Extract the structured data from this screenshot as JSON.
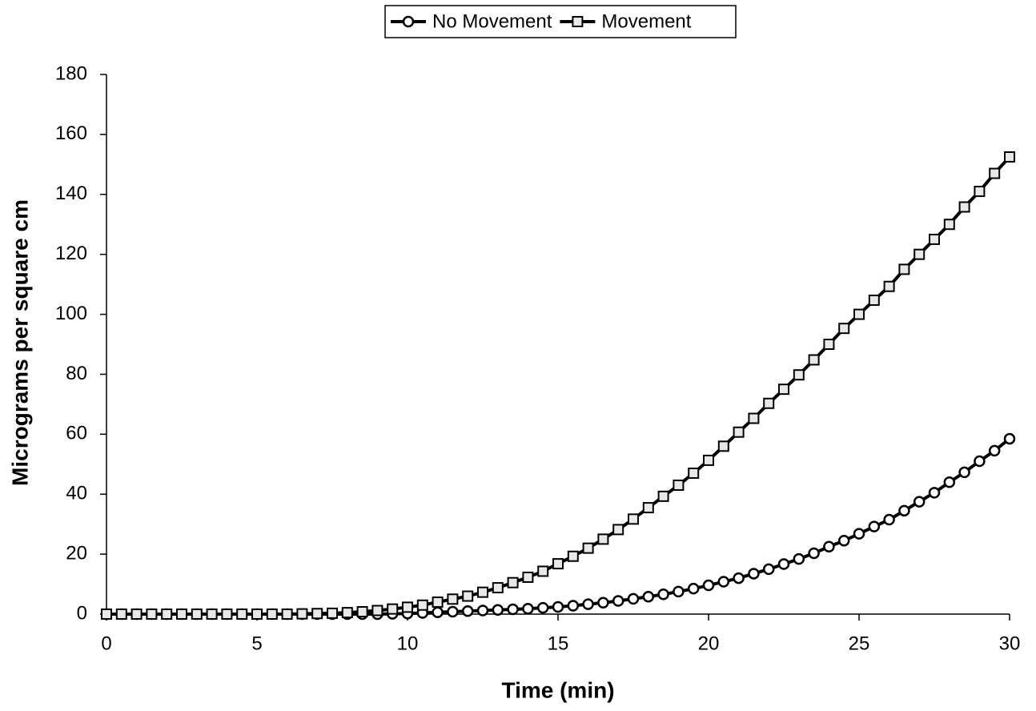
{
  "chart_data": {
    "type": "line",
    "x_label": "Time (min)",
    "y_label": "Micrograms per square cm",
    "x": [
      0,
      0.5,
      1,
      1.5,
      2,
      2.5,
      3,
      3.5,
      4,
      4.5,
      5,
      5.5,
      6,
      6.5,
      7,
      7.5,
      8,
      8.5,
      9,
      9.5,
      10,
      10.5,
      11,
      11.5,
      12,
      12.5,
      13,
      13.5,
      14,
      14.5,
      15,
      15.5,
      16,
      16.5,
      17,
      17.5,
      18,
      18.5,
      19,
      19.5,
      20,
      20.5,
      21,
      21.5,
      22,
      22.5,
      23,
      23.5,
      24,
      24.5,
      25,
      25.5,
      26,
      26.5,
      27,
      27.5,
      28,
      28.5,
      29,
      29.5,
      30
    ],
    "series": [
      {
        "name": "No Movement",
        "color": "#000000",
        "marker": "circle",
        "values": [
          0,
          0,
          0,
          0,
          0,
          0,
          0,
          0,
          0,
          0,
          0,
          0,
          0,
          0,
          0,
          0,
          0,
          0,
          0,
          0.1,
          0.2,
          0.4,
          0.6,
          0.8,
          1,
          1.2,
          1.4,
          1.6,
          1.8,
          2.1,
          2.4,
          2.8,
          3.3,
          3.8,
          4.4,
          5.1,
          5.8,
          6.6,
          7.5,
          8.5,
          9.6,
          10.8,
          12,
          13.5,
          15,
          16.7,
          18.4,
          20.3,
          22.5,
          24.5,
          26.8,
          29.2,
          31.5,
          34.5,
          37.5,
          40.5,
          44,
          47.3,
          51,
          54.5,
          58.5
        ]
      },
      {
        "name": "Movement",
        "color": "#000000",
        "marker": "square",
        "values": [
          0,
          0,
          0,
          0,
          0,
          0,
          0,
          0,
          0,
          0,
          0,
          0,
          0,
          0.1,
          0.2,
          0.3,
          0.5,
          0.8,
          1.2,
          1.7,
          2.3,
          3,
          4,
          5,
          6,
          7.3,
          8.8,
          10.5,
          12.3,
          14.3,
          16.8,
          19.3,
          22,
          25,
          28.2,
          31.7,
          35.5,
          39.3,
          43,
          47,
          51.3,
          56,
          60.7,
          65.3,
          70.3,
          75,
          79.8,
          84.8,
          90,
          95.3,
          100,
          104.7,
          109.3,
          115,
          120,
          125,
          130,
          135.8,
          141,
          147,
          152.5
        ]
      }
    ],
    "xlim": [
      0,
      30
    ],
    "xticks": [
      0,
      5,
      10,
      15,
      20,
      25,
      30
    ],
    "ylim": [
      0,
      180
    ],
    "yticks": [
      0,
      20,
      40,
      60,
      80,
      100,
      120,
      140,
      160,
      180
    ],
    "grid": false,
    "legend": "top"
  }
}
